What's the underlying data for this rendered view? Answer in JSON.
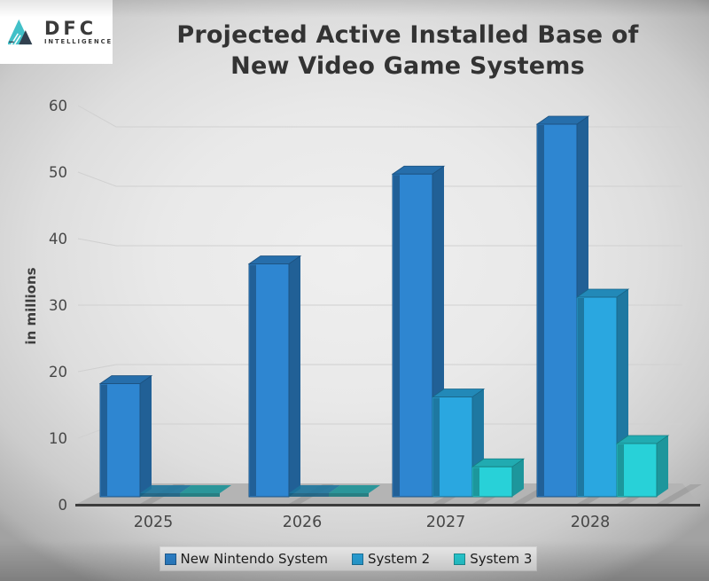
{
  "header": {
    "title_line1": "Projected Active Installed Base of",
    "title_line2": "New Video Game Systems",
    "logo": {
      "brand": "DFC",
      "sub": "INTELLIGENCE"
    }
  },
  "chart_data": {
    "type": "bar",
    "style": "3d-perspective",
    "title": "Projected Active Installed Base of New Video Game Systems",
    "xlabel": "",
    "ylabel": "in millions",
    "ylim": [
      0,
      60
    ],
    "yticks": [
      0,
      10,
      20,
      30,
      40,
      50,
      60
    ],
    "grid": true,
    "legend_position": "bottom",
    "categories": [
      "2025",
      "2026",
      "2027",
      "2028"
    ],
    "series": [
      {
        "name": "New Nintendo System",
        "color": "#2e86d1",
        "values": [
          17,
          35,
          48.5,
          56
        ]
      },
      {
        "name": "System 2",
        "color": "#2aa7e0",
        "values": [
          0,
          0,
          15,
          30
        ]
      },
      {
        "name": "System 3",
        "color": "#28d1d8",
        "values": [
          0,
          0,
          4.5,
          8
        ]
      }
    ]
  },
  "colors": {
    "background": "#e6e6e6",
    "title_text": "#333333",
    "axis_text": "#474747",
    "axis_line": "#3c3c3c",
    "gridline": "#d0d0d0",
    "floor": "#b4b4b4",
    "legend_bg": "#ededed",
    "logo_teal": "#41c0c8",
    "logo_dark": "#31404f"
  }
}
